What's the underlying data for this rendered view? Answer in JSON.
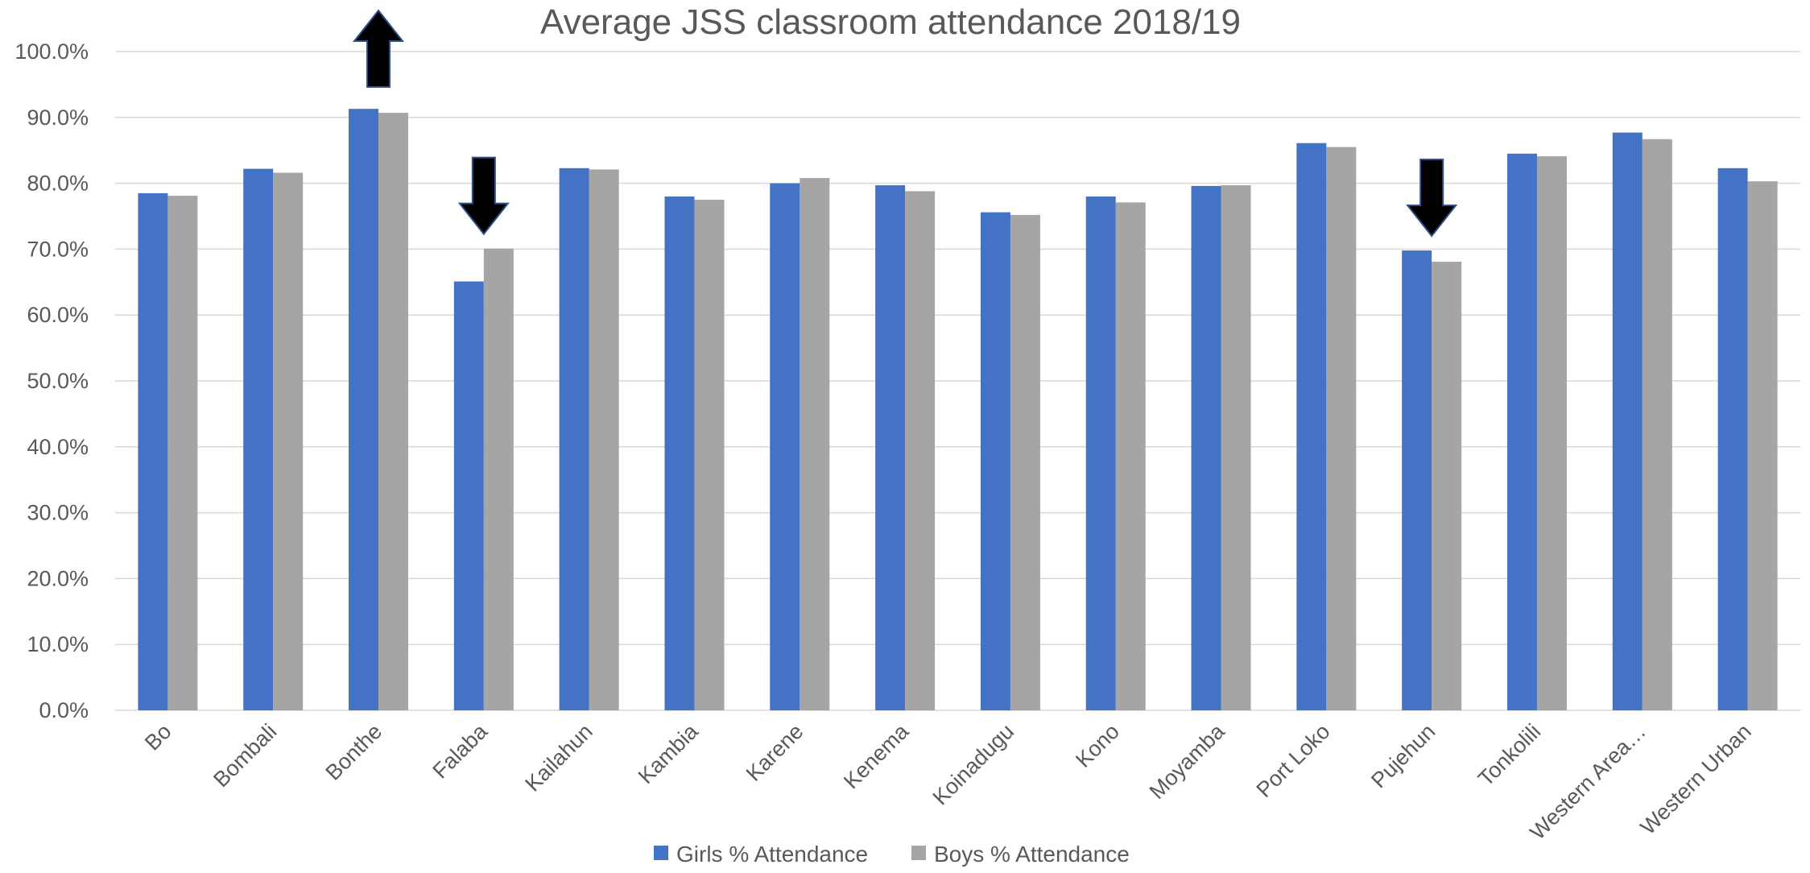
{
  "chart_data": {
    "type": "bar",
    "title": "Average JSS classroom attendance 2018/19",
    "xlabel": "",
    "ylabel": "",
    "ylim": [
      0,
      1
    ],
    "y_ticks": [
      0,
      0.1,
      0.2,
      0.3,
      0.4,
      0.5,
      0.6,
      0.7,
      0.8,
      0.9,
      1.0
    ],
    "y_tick_labels": [
      "0.0%",
      "10.0%",
      "20.0%",
      "30.0%",
      "40.0%",
      "50.0%",
      "60.0%",
      "70.0%",
      "80.0%",
      "90.0%",
      "100.0%"
    ],
    "grid": true,
    "legend_position": "bottom",
    "categories": [
      "Bo",
      "Bombali",
      "Bonthe",
      "Falaba",
      "Kailahun",
      "Kambia",
      "Karene",
      "Kenema",
      "Koinadugu",
      "Kono",
      "Moyamba",
      "Port Loko",
      "Pujehun",
      "Tonkolili",
      "Western Area…",
      "Western Urban"
    ],
    "series": [
      {
        "name": "Girls % Attendance",
        "color": "#4472c4",
        "values": [
          0.785,
          0.822,
          0.913,
          0.651,
          0.823,
          0.78,
          0.8,
          0.797,
          0.756,
          0.78,
          0.796,
          0.861,
          0.698,
          0.845,
          0.877,
          0.823
        ]
      },
      {
        "name": "Boys % Attendance",
        "color": "#a5a5a5",
        "values": [
          0.781,
          0.816,
          0.907,
          0.701,
          0.821,
          0.775,
          0.808,
          0.788,
          0.752,
          0.771,
          0.797,
          0.855,
          0.681,
          0.841,
          0.867,
          0.803
        ]
      }
    ],
    "annotations": [
      {
        "type": "arrow",
        "direction": "up",
        "category": "Bonthe",
        "color": "#000000"
      },
      {
        "type": "arrow",
        "direction": "down",
        "category": "Falaba",
        "color": "#000000"
      },
      {
        "type": "arrow",
        "direction": "down",
        "category": "Pujehun",
        "color": "#000000"
      }
    ]
  }
}
